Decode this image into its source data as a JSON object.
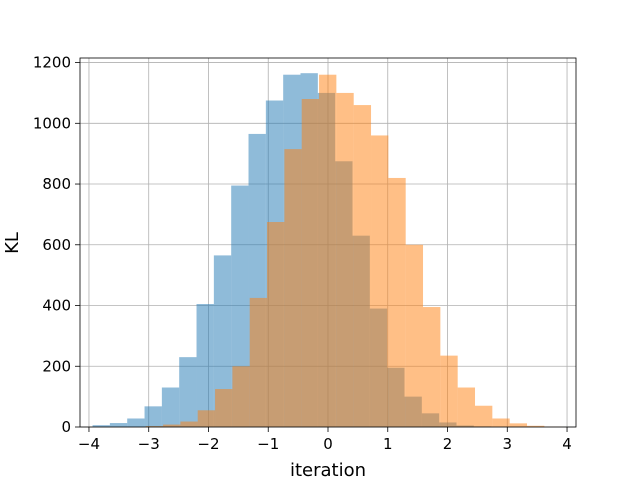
{
  "chart_data": {
    "type": "bar",
    "title": "",
    "xlabel": "iteration",
    "ylabel": "KL",
    "xlim": [
      -4.15,
      4.15
    ],
    "ylim": [
      0,
      1215
    ],
    "xticks": [
      -4,
      -3,
      -2,
      -1,
      0,
      1,
      2,
      3,
      4
    ],
    "yticks": [
      0,
      200,
      400,
      600,
      800,
      1000,
      1200
    ],
    "grid": true,
    "series": [
      {
        "color": "#1f77b4",
        "opacity": 0.5,
        "bin_edges": [
          -3.94,
          -3.65,
          -3.36,
          -3.07,
          -2.78,
          -2.49,
          -2.2,
          -1.91,
          -1.62,
          -1.33,
          -1.04,
          -0.75,
          -0.46,
          -0.17,
          0.12,
          0.41,
          0.7,
          0.99,
          1.28,
          1.57,
          1.86,
          2.15,
          2.44,
          2.73
        ],
        "counts": [
          6,
          13,
          28,
          68,
          130,
          230,
          405,
          565,
          795,
          965,
          1075,
          1160,
          1165,
          1100,
          875,
          630,
          390,
          195,
          100,
          45,
          15,
          5,
          2
        ]
      },
      {
        "color": "#ff7f0e",
        "opacity": 0.5,
        "bin_edges": [
          -3.05,
          -2.76,
          -2.47,
          -2.18,
          -1.89,
          -1.6,
          -1.31,
          -1.02,
          -0.73,
          -0.44,
          -0.15,
          0.14,
          0.43,
          0.72,
          1.01,
          1.3,
          1.59,
          1.88,
          2.17,
          2.46,
          2.75,
          3.04,
          3.33,
          3.62,
          3.91
        ],
        "counts": [
          3,
          8,
          18,
          55,
          125,
          200,
          425,
          675,
          915,
          1080,
          1160,
          1100,
          1060,
          960,
          820,
          600,
          395,
          235,
          130,
          70,
          28,
          12,
          4,
          1
        ]
      }
    ]
  }
}
